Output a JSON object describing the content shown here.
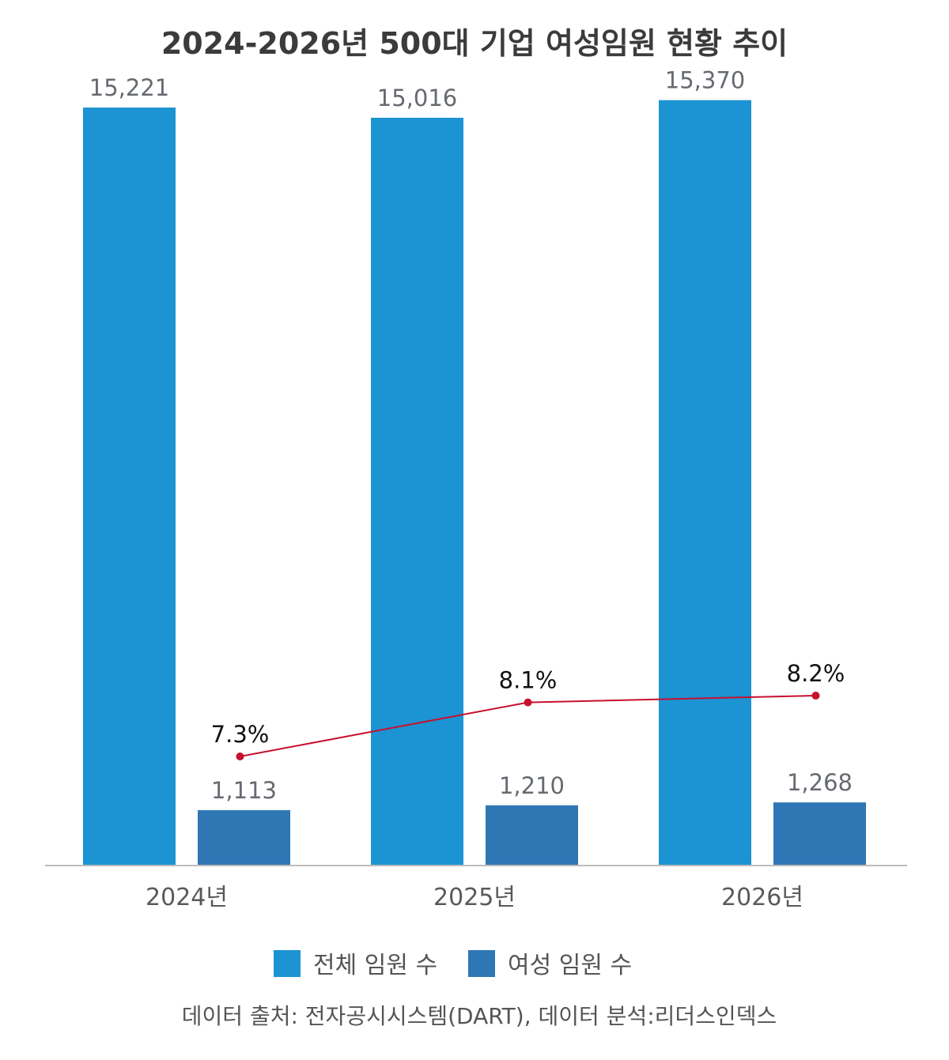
{
  "chart_data": {
    "type": "bar",
    "title": "2024-2026년 500대 기업 여성임원 현황 추이",
    "categories": [
      "2024년",
      "2025년",
      "2026년"
    ],
    "series": [
      {
        "name": "전체 임원 수",
        "values": [
          15221,
          15016,
          15370
        ],
        "labels": [
          "15,221",
          "15,016",
          "15,370"
        ],
        "color": "#1c93d2"
      },
      {
        "name": "여성 임원 수",
        "values": [
          1113,
          1210,
          1268
        ],
        "labels": [
          "1,113",
          "1,210",
          "1,268"
        ],
        "color": "#2f77b4"
      }
    ],
    "line_series": {
      "values": [
        7.3,
        8.1,
        8.2
      ],
      "labels": [
        "7.3%",
        "8.1%",
        "8.2%"
      ],
      "color": "#c8102e"
    },
    "ylim": [
      0,
      16000
    ],
    "grid": false,
    "legend_position": "bottom",
    "source": "데이터 출처: 전자공시시스템(DART), 데이터 분석:리더스인덱스"
  }
}
